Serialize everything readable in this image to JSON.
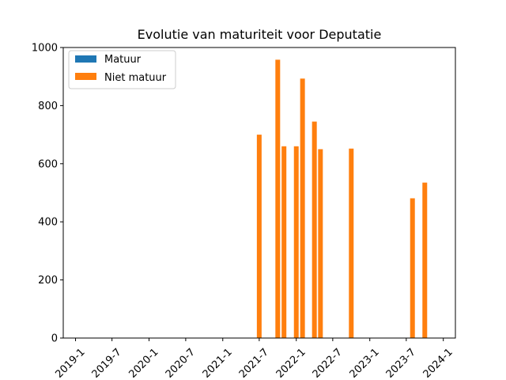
{
  "chart_data": {
    "type": "bar",
    "title": "Evolutie van maturiteit voor Deputatie",
    "xlabel": "",
    "ylabel": "",
    "ylim": [
      0,
      1000
    ],
    "yticks": [
      0,
      200,
      400,
      600,
      800,
      1000
    ],
    "xlim": [
      "2018-11-01",
      "2024-03-01"
    ],
    "xticks": [
      {
        "date": "2019-01-01",
        "label": "2019-1"
      },
      {
        "date": "2019-07-01",
        "label": "2019-7"
      },
      {
        "date": "2020-01-01",
        "label": "2020-1"
      },
      {
        "date": "2020-07-01",
        "label": "2020-7"
      },
      {
        "date": "2021-01-01",
        "label": "2021-1"
      },
      {
        "date": "2021-07-01",
        "label": "2021-7"
      },
      {
        "date": "2022-01-01",
        "label": "2022-1"
      },
      {
        "date": "2022-07-01",
        "label": "2022-7"
      },
      {
        "date": "2023-01-01",
        "label": "2023-1"
      },
      {
        "date": "2023-07-01",
        "label": "2023-7"
      },
      {
        "date": "2024-01-01",
        "label": "2024-1"
      }
    ],
    "legend_position": "top-left",
    "series": [
      {
        "name": "Matuur",
        "color": "#1f77b4",
        "points": []
      },
      {
        "name": "Niet matuur",
        "color": "#ff7f0e",
        "points": [
          {
            "x": "2021-07-01",
            "y": 700
          },
          {
            "x": "2021-10-01",
            "y": 958
          },
          {
            "x": "2021-11-01",
            "y": 660
          },
          {
            "x": "2022-01-01",
            "y": 660
          },
          {
            "x": "2022-02-01",
            "y": 893
          },
          {
            "x": "2022-04-01",
            "y": 745
          },
          {
            "x": "2022-05-01",
            "y": 650
          },
          {
            "x": "2022-10-01",
            "y": 652
          },
          {
            "x": "2023-08-01",
            "y": 481
          },
          {
            "x": "2023-10-01",
            "y": 535
          }
        ]
      }
    ]
  }
}
